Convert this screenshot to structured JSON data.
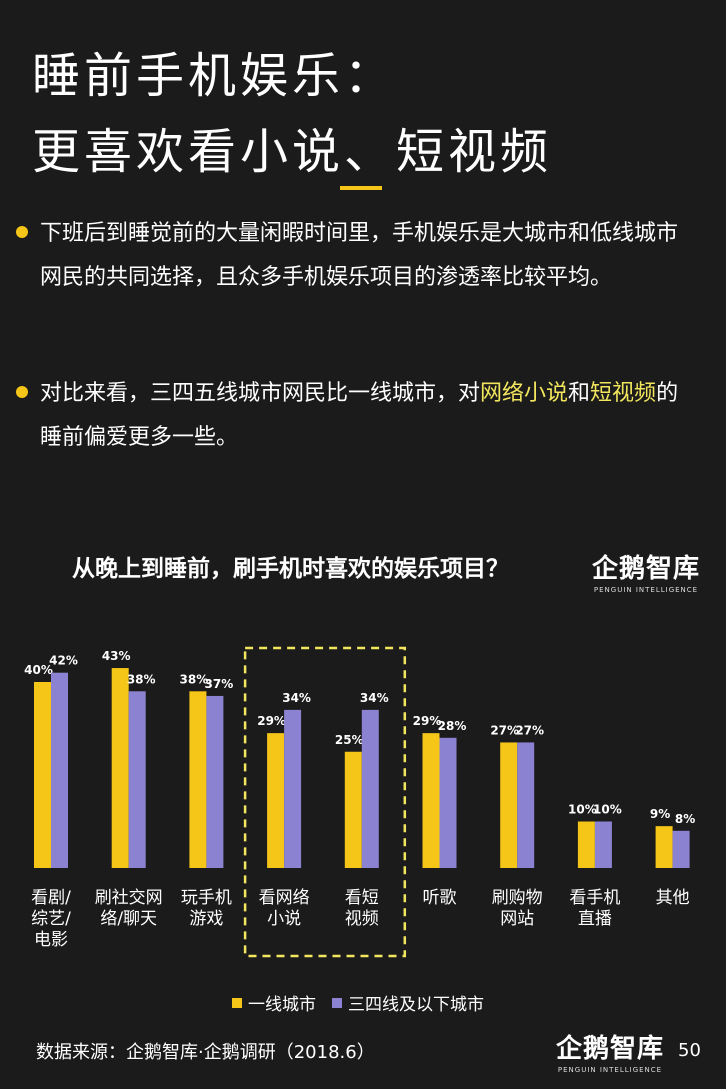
{
  "title": {
    "line1": "睡前手机娱乐：",
    "line2": "更喜欢看小说、短视频"
  },
  "bullets": [
    {
      "parts": [
        {
          "text": "下班后到睡觉前的大量闲暇时间里，手机娱乐是大城市和低线城市网民的共同选择，且众多手机娱乐项目的渗透率比较平均。"
        }
      ]
    },
    {
      "parts": [
        {
          "text": "对比来看，三四五线城市网民比一线城市，对"
        },
        {
          "text": "网络小说"
        },
        {
          "text": "和"
        },
        {
          "text": "短视频"
        },
        {
          "text": "的睡前偏爱更多一些。"
        }
      ]
    }
  ],
  "logo": {
    "name": "企鹅智库",
    "sub": "PENGUIN INTELLIGENCE"
  },
  "source": "数据来源：企鹅智库·企鹅调研（2018.6）",
  "page_number": "50",
  "colors": {
    "series1": "#f5c518",
    "series2": "#8b83d1",
    "highlight": "#f1e65e",
    "background": "#1c1b1b"
  },
  "chart_data": {
    "type": "bar",
    "title": "从晚上到睡前，刷手机时喜欢的娱乐项目？",
    "categories": [
      "看剧/综艺/电影",
      "刷社交网络/聊天",
      "玩手机游戏",
      "看网络小说",
      "看短视频",
      "听歌",
      "刷购物网站",
      "看手机直播",
      "其他"
    ],
    "category_lines": [
      [
        "看剧/",
        "综艺/",
        "电影"
      ],
      [
        "刷社交网",
        "络/聊天"
      ],
      [
        "玩手机",
        "游戏"
      ],
      [
        "看网络",
        "小说"
      ],
      [
        "看短",
        "视频"
      ],
      [
        "听歌"
      ],
      [
        "刷购物",
        "网站"
      ],
      [
        "看手机",
        "直播"
      ],
      [
        "其他"
      ]
    ],
    "series": [
      {
        "name": "一线城市",
        "values": [
          40,
          43,
          38,
          29,
          25,
          29,
          27,
          10,
          9
        ]
      },
      {
        "name": "三四线及以下城市",
        "values": [
          42,
          38,
          37,
          34,
          34,
          28,
          27,
          10,
          8
        ]
      }
    ],
    "value_suffix": "%",
    "highlighted_categories": [
      3,
      4
    ],
    "ylim": [
      0,
      45
    ]
  }
}
